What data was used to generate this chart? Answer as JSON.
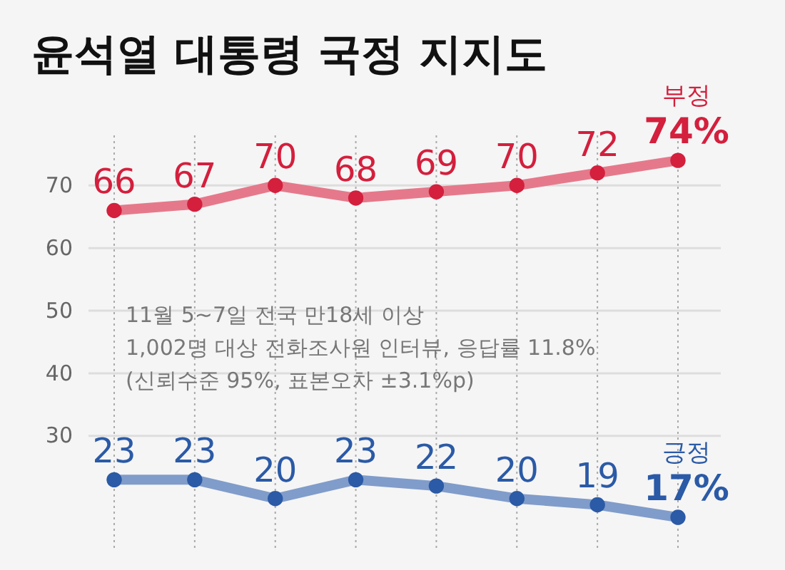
{
  "chart_data": {
    "type": "line",
    "title": "윤석열 대통령 국정 지지도",
    "categories": [
      null,
      null,
      null,
      null,
      null,
      null,
      null,
      null
    ],
    "series": [
      {
        "name": "부정",
        "color": "#d41f3d",
        "values": [
          66,
          67,
          70,
          68,
          69,
          70,
          72,
          74
        ],
        "value_labels": [
          "66",
          "67",
          "70",
          "68",
          "69",
          "70",
          "72",
          "74%"
        ]
      },
      {
        "name": "긍정",
        "color": "#2b5aa6",
        "values": [
          23,
          23,
          20,
          23,
          22,
          20,
          19,
          17
        ],
        "value_labels": [
          "23",
          "23",
          "20",
          "23",
          "22",
          "20",
          "19",
          "17%"
        ]
      }
    ],
    "ylim": [
      12,
      78
    ],
    "yticks": [
      30,
      40,
      50,
      60,
      70
    ],
    "grid": true,
    "marker": "circle",
    "line_style": "solid",
    "annotations": [
      "11월 5~7일 전국 만18세 이상",
      "1,002명 대상 전화조사원 인터뷰, 응답률 11.8%",
      "(신뢰수준 95%, 표본오차 ±3.1%p)"
    ]
  }
}
